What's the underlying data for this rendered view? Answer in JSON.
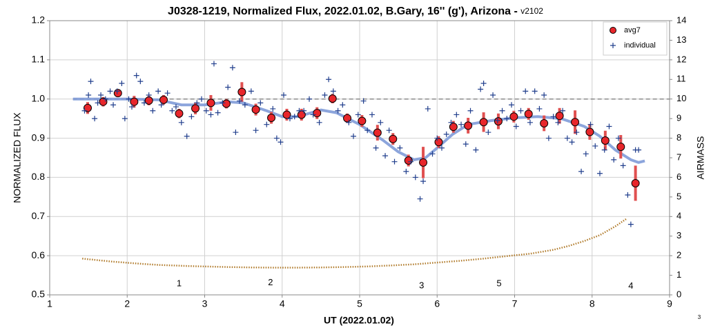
{
  "chart_data": {
    "type": "scatter",
    "title": "J0328-1219, Normalized Flux, 2022.01.02, B.Gary, 16'' (g'), Arizona - ",
    "version": "v2102",
    "x_label": "UT (2022.01.02)",
    "y_label": "NORMALIZED FLUX",
    "y2_label": "AIRMASS",
    "corner_note": "3",
    "xlim": [
      1,
      9
    ],
    "xticks": [
      1,
      2,
      3,
      4,
      5,
      6,
      7,
      8,
      9
    ],
    "ylim": [
      0.5,
      1.2
    ],
    "yticks": [
      0.5,
      0.6,
      0.7,
      0.8,
      0.9,
      {
        "value": 1.0,
        "label": "1.0"
      },
      1.1,
      1.2
    ],
    "y2lim": [
      0,
      14
    ],
    "y2ticks": [
      0,
      1,
      2,
      3,
      4,
      5,
      6,
      7,
      8,
      9,
      10,
      11,
      12,
      13,
      14
    ],
    "grid": true,
    "legend": "top-right",
    "reference_line": {
      "y": 1.0,
      "xlim": [
        1.3,
        9
      ]
    },
    "annotations": [
      {
        "text": "1",
        "x": 2.67,
        "y": 0.528
      },
      {
        "text": "2",
        "x": 3.85,
        "y": 0.531
      },
      {
        "text": "3",
        "x": 5.8,
        "y": 0.523
      },
      {
        "text": "5",
        "x": 6.8,
        "y": 0.528
      },
      {
        "text": "4",
        "x": 8.5,
        "y": 0.522
      }
    ],
    "series": [
      {
        "name": "avg7",
        "color": "#e8262b",
        "error_color": "#e05050",
        "x": [
          1.49,
          1.69,
          1.88,
          2.09,
          2.28,
          2.47,
          2.67,
          2.88,
          3.08,
          3.28,
          3.48,
          3.66,
          3.86,
          4.06,
          4.25,
          4.45,
          4.65,
          4.84,
          5.03,
          5.23,
          5.43,
          5.63,
          5.82,
          6.02,
          6.21,
          6.4,
          6.6,
          6.79,
          6.99,
          7.18,
          7.38,
          7.58,
          7.78,
          7.97,
          8.17,
          8.37,
          8.56
        ],
        "values": [
          0.977,
          0.993,
          1.015,
          0.993,
          0.996,
          0.998,
          0.963,
          0.976,
          0.99,
          0.988,
          1.018,
          0.973,
          0.952,
          0.96,
          0.96,
          0.964,
          1.001,
          0.951,
          0.944,
          0.914,
          0.898,
          0.843,
          0.838,
          0.89,
          0.929,
          0.932,
          0.941,
          0.943,
          0.955,
          0.962,
          0.938,
          0.957,
          0.941,
          0.916,
          0.894,
          0.878,
          0.785
        ],
        "errors": [
          0.015,
          0.012,
          0.01,
          0.015,
          0.012,
          0.012,
          0.012,
          0.015,
          0.02,
          0.012,
          0.025,
          0.015,
          0.015,
          0.015,
          0.015,
          0.015,
          0.012,
          0.012,
          0.015,
          0.02,
          0.015,
          0.015,
          0.04,
          0.015,
          0.015,
          0.02,
          0.025,
          0.02,
          0.015,
          0.015,
          0.02,
          0.02,
          0.03,
          0.02,
          0.025,
          0.03,
          0.045
        ]
      },
      {
        "name": "individual",
        "color": "#1f3d8c",
        "x": [
          1.45,
          1.5,
          1.53,
          1.58,
          1.62,
          1.66,
          1.72,
          1.78,
          1.82,
          1.87,
          1.93,
          1.97,
          2.02,
          2.06,
          2.12,
          2.17,
          2.22,
          2.28,
          2.33,
          2.4,
          2.44,
          2.52,
          2.58,
          2.63,
          2.7,
          2.77,
          2.83,
          2.9,
          2.96,
          3.02,
          3.08,
          3.12,
          3.17,
          3.23,
          3.3,
          3.36,
          3.4,
          3.45,
          3.52,
          3.6,
          3.66,
          3.72,
          3.8,
          3.88,
          3.93,
          3.98,
          4.02,
          4.1,
          4.16,
          4.22,
          4.28,
          4.35,
          4.4,
          4.48,
          4.55,
          4.6,
          4.66,
          4.72,
          4.78,
          4.86,
          4.92,
          4.98,
          5.05,
          5.1,
          5.16,
          5.21,
          5.27,
          5.33,
          5.38,
          5.45,
          5.52,
          5.6,
          5.66,
          5.72,
          5.78,
          5.82,
          5.88,
          5.94,
          6.0,
          6.06,
          6.12,
          6.18,
          6.25,
          6.31,
          6.37,
          6.43,
          6.5,
          6.56,
          6.6,
          6.66,
          6.72,
          6.78,
          6.84,
          6.9,
          6.96,
          7.02,
          7.08,
          7.14,
          7.2,
          7.26,
          7.32,
          7.38,
          7.44,
          7.5,
          7.56,
          7.62,
          7.68,
          7.74,
          7.8,
          7.86,
          7.92,
          7.98,
          8.04,
          8.1,
          8.16,
          8.22,
          8.28,
          8.34,
          8.4,
          8.46,
          8.5,
          8.56,
          8.6
        ],
        "values": [
          0.97,
          1.01,
          1.045,
          0.95,
          0.99,
          1.01,
          1.0,
          1.02,
          0.985,
          1.02,
          1.04,
          0.95,
          1.0,
          0.98,
          1.06,
          1.045,
          0.99,
          1.01,
          0.97,
          1.02,
          0.985,
          1.015,
          0.97,
          0.98,
          0.94,
          0.905,
          0.955,
          0.99,
          1.0,
          0.97,
          0.96,
          1.09,
          0.965,
          0.99,
          1.03,
          1.08,
          0.915,
          0.995,
          0.985,
          1.02,
          0.92,
          0.99,
          0.935,
          0.975,
          0.9,
          0.89,
          1.01,
          0.95,
          0.955,
          0.97,
          0.97,
          1.0,
          0.96,
          0.94,
          1.01,
          1.05,
          1.02,
          0.97,
          0.985,
          0.94,
          0.905,
          0.96,
          0.995,
          0.92,
          0.96,
          0.875,
          0.94,
          0.855,
          0.92,
          0.84,
          0.875,
          0.815,
          0.84,
          0.8,
          0.745,
          0.79,
          0.975,
          0.86,
          0.9,
          0.875,
          0.91,
          0.94,
          0.96,
          0.935,
          0.885,
          0.97,
          0.87,
          1.025,
          1.04,
          0.915,
          1.01,
          0.945,
          0.97,
          0.95,
          0.985,
          0.93,
          0.97,
          1.02,
          0.94,
          1.02,
          0.975,
          1.01,
          0.9,
          0.955,
          0.94,
          0.97,
          0.9,
          0.89,
          0.915,
          0.815,
          0.86,
          0.935,
          0.88,
          0.81,
          0.87,
          0.93,
          0.845,
          0.9,
          0.83,
          0.755,
          0.68,
          0.87,
          0.87
        ]
      }
    ],
    "model": {
      "color": "#7f9bd8",
      "x": [
        1.3,
        1.6,
        2.0,
        2.4,
        2.7,
        3.0,
        3.3,
        3.5,
        3.8,
        4.0,
        4.2,
        4.5,
        4.7,
        5.0,
        5.3,
        5.5,
        5.7,
        5.85,
        6.0,
        6.2,
        6.4,
        6.7,
        7.0,
        7.3,
        7.6,
        7.9,
        8.1,
        8.3,
        8.5,
        8.6,
        8.68
      ],
      "values": [
        1.0,
        1.0,
        1.0,
        0.998,
        0.985,
        0.985,
        0.993,
        0.99,
        0.97,
        0.955,
        0.955,
        0.972,
        0.965,
        0.935,
        0.895,
        0.865,
        0.845,
        0.85,
        0.875,
        0.91,
        0.935,
        0.945,
        0.952,
        0.955,
        0.95,
        0.93,
        0.905,
        0.87,
        0.845,
        0.838,
        0.842
      ]
    },
    "airmass": {
      "color": "#b07a2a",
      "axis": "y2",
      "x": [
        1.42,
        1.6,
        1.8,
        2.0,
        2.2,
        2.4,
        2.6,
        2.8,
        3.0,
        3.3,
        3.6,
        3.9,
        4.2,
        4.5,
        4.8,
        5.1,
        5.4,
        5.7,
        6.0,
        6.3,
        6.6,
        6.9,
        7.2,
        7.5,
        7.7,
        7.9,
        8.1,
        8.3,
        8.45
      ],
      "values": [
        1.85,
        1.78,
        1.7,
        1.64,
        1.58,
        1.53,
        1.5,
        1.47,
        1.45,
        1.42,
        1.4,
        1.39,
        1.39,
        1.4,
        1.42,
        1.45,
        1.5,
        1.56,
        1.65,
        1.74,
        1.85,
        1.98,
        2.1,
        2.3,
        2.5,
        2.75,
        3.05,
        3.5,
        3.9
      ]
    }
  }
}
